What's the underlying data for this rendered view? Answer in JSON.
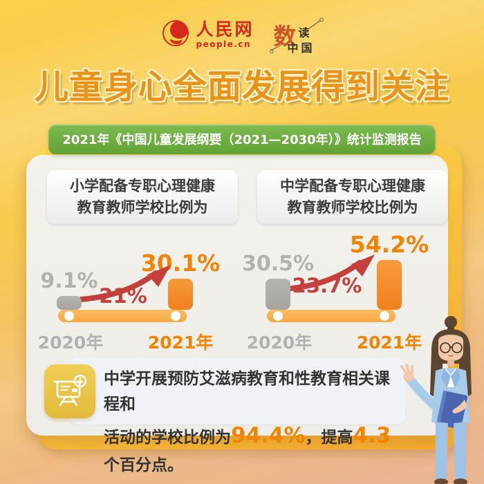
{
  "colors": {
    "background_yellow": "#F8CC4D",
    "background_tan": "#EAB592",
    "title_orange": "#E8941A",
    "title_outline_cream": "#FCF1C8",
    "banner_green": "#6FAE44",
    "card_backing_orange": "#F3A72E",
    "card_bg": "#F1EFEA",
    "bar_gray": "#AFACA7",
    "bar_orange": "#F5882C",
    "value_orange": "#F08300",
    "value_gray": "#B3B1AE",
    "change_red": "#C4403C",
    "track_orange": "#F9B14F",
    "note_bg": "#EFF2F6",
    "note_icon_yellow": "#E9C94E",
    "logo_red": "#D7281E"
  },
  "header": {
    "people_logo_cn": "人民网",
    "people_logo_en": "people.cn",
    "shudu_big": "数",
    "shudu_small": "读",
    "shudu_bottom": "中国"
  },
  "title": "儿童身心全面发展得到关注",
  "banner": "2021年《中国儿童发展纲要（2021—2030年）》统计监测报告",
  "chart_data": [
    {
      "type": "bar",
      "title": "小学配备专职心理健康教育教师学校比例为",
      "title_lines": [
        "小学配备专职心理健康",
        "教育教师学校比例为"
      ],
      "categories": [
        "2020年",
        "2021年"
      ],
      "values": [
        9.1,
        30.1
      ],
      "value_labels": [
        "9.1%",
        "30.1%"
      ],
      "change_label": "21%",
      "series": [
        {
          "name": "学校比例",
          "values": [
            9.1,
            30.1
          ]
        }
      ],
      "unit": "%",
      "ylim": [
        0,
        60
      ],
      "grid": false,
      "legend_position": "none",
      "bar_colors": [
        "#AFACA7",
        "#F5882C"
      ]
    },
    {
      "type": "bar",
      "title": "中学配备专职心理健康教育教师学校比例为",
      "title_lines": [
        "中学配备专职心理健康",
        "教育教师学校比例为"
      ],
      "categories": [
        "2020年",
        "2021年"
      ],
      "values": [
        30.5,
        54.2
      ],
      "value_labels": [
        "30.5%",
        "54.2%"
      ],
      "change_label": "23.7%",
      "series": [
        {
          "name": "学校比例",
          "values": [
            30.5,
            54.2
          ]
        }
      ],
      "unit": "%",
      "ylim": [
        0,
        60
      ],
      "grid": false,
      "legend_position": "none",
      "bar_colors": [
        "#AFACA7",
        "#F5882C"
      ]
    }
  ],
  "note": {
    "line1": "中学开展预防艾滋病教育和性教育相关课程和",
    "line2_prefix": "活动的学校比例为",
    "line2_value1": "94.4%",
    "line2_mid": "，提高",
    "line2_value2": "4.3",
    "line2_suffix": "个百分点。"
  },
  "icons": {
    "people_cn_logo": "red swirl globe",
    "shudu_zhongguo_logo": "数读中国 wordmark with trend lines",
    "trend_arrow_icon": "red upward curved arrow",
    "presentation_board_info_icon": "whiteboard with info badge",
    "presenter_illustration": "3d woman in blue suit holding folder"
  }
}
